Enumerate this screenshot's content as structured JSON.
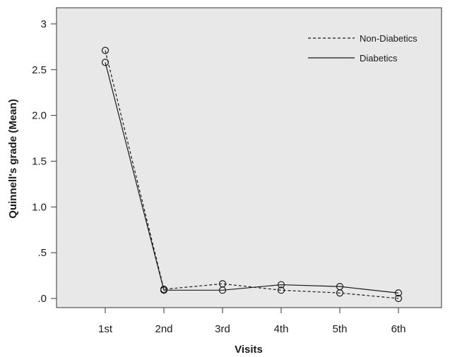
{
  "chart_data": {
    "type": "line",
    "title": "",
    "xlabel": "Visits",
    "ylabel": "Quinnell's grade (Mean)",
    "categories": [
      "1st",
      "2nd",
      "3rd",
      "4th",
      "5th",
      "6th"
    ],
    "y_ticks": [
      {
        "value": 0,
        "label": ".0"
      },
      {
        "value": 0.5,
        "label": ".5"
      },
      {
        "value": 1.0,
        "label": "1.0"
      },
      {
        "value": 1.5,
        "label": "1.5"
      },
      {
        "value": 2.0,
        "label": "2.0"
      },
      {
        "value": 2.5,
        "label": "2.5"
      },
      {
        "value": 3.0,
        "label": "3"
      }
    ],
    "ylim": [
      -0.1,
      3.05
    ],
    "grid": false,
    "legend_position": "top-right",
    "marker": "open-circle",
    "series": [
      {
        "name": "Non-Diabetics",
        "line_style": "dashed",
        "values": [
          2.71,
          0.1,
          0.16,
          0.09,
          0.06,
          0.0
        ]
      },
      {
        "name": "Diabetics",
        "line_style": "solid",
        "values": [
          2.58,
          0.09,
          0.09,
          0.15,
          0.13,
          0.06
        ]
      }
    ],
    "colors": {
      "plot_background": "#e8e8e8",
      "line": "#1a1a1a",
      "frame": "#333333"
    }
  }
}
